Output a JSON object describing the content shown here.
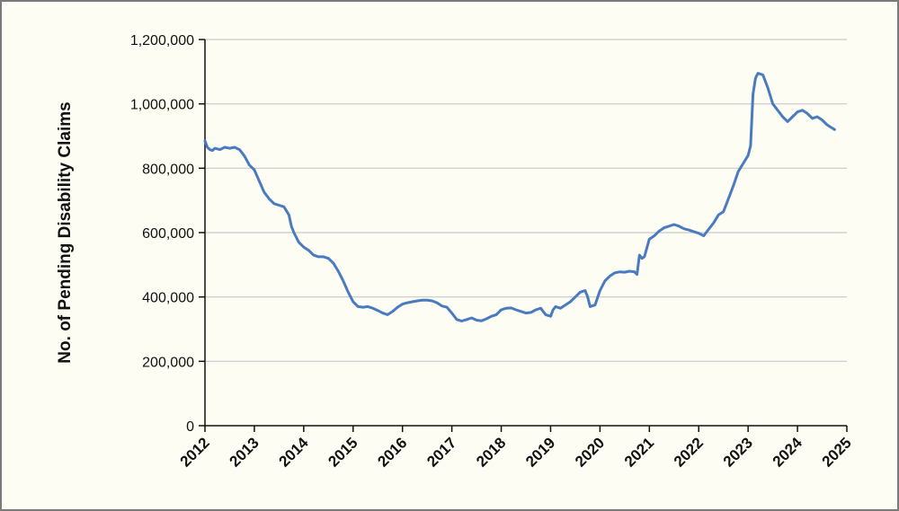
{
  "chart_data": {
    "type": "line",
    "title": "",
    "xlabel": "",
    "ylabel": "No. of Pending Disability Claims",
    "xlim": [
      2012,
      2025
    ],
    "ylim": [
      0,
      1200000
    ],
    "x_ticks": [
      "2012",
      "2013",
      "2014",
      "2015",
      "2016",
      "2017",
      "2018",
      "2019",
      "2020",
      "2021",
      "2022",
      "2023",
      "2024",
      "2025"
    ],
    "y_ticks": [
      {
        "value": 0,
        "label": "0"
      },
      {
        "value": 200000,
        "label": "200,000"
      },
      {
        "value": 400000,
        "label": "400,000"
      },
      {
        "value": 600000,
        "label": "600,000"
      },
      {
        "value": 800000,
        "label": "800,000"
      },
      {
        "value": 1000000,
        "label": "1,000,000"
      },
      {
        "value": 1200000,
        "label": "1,200,000"
      }
    ],
    "grid": "horizontal",
    "legend": "none",
    "line_color": "#4a7bbf",
    "series": [
      {
        "x": [
          2012.0,
          2012.05,
          2012.1,
          2012.15,
          2012.2,
          2012.3,
          2012.4,
          2012.5,
          2012.6,
          2012.7,
          2012.8,
          2012.9,
          2013.0,
          2013.1,
          2013.2,
          2013.3,
          2013.4,
          2013.5,
          2013.6,
          2013.7,
          2013.75,
          2013.8,
          2013.9,
          2014.0,
          2014.1,
          2014.2,
          2014.3,
          2014.4,
          2014.5,
          2014.6,
          2014.7,
          2014.8,
          2014.9,
          2015.0,
          2015.1,
          2015.2,
          2015.3,
          2015.4,
          2015.5,
          2015.6,
          2015.7,
          2015.8,
          2015.9,
          2016.0,
          2016.1,
          2016.2,
          2016.3,
          2016.4,
          2016.5,
          2016.6,
          2016.7,
          2016.8,
          2016.9,
          2017.0,
          2017.1,
          2017.2,
          2017.3,
          2017.4,
          2017.5,
          2017.6,
          2017.7,
          2017.8,
          2017.9,
          2018.0,
          2018.1,
          2018.2,
          2018.3,
          2018.4,
          2018.5,
          2018.6,
          2018.7,
          2018.8,
          2018.85,
          2018.9,
          2019.0,
          2019.05,
          2019.1,
          2019.2,
          2019.3,
          2019.4,
          2019.5,
          2019.6,
          2019.7,
          2019.75,
          2019.8,
          2019.9,
          2020.0,
          2020.1,
          2020.2,
          2020.3,
          2020.4,
          2020.5,
          2020.6,
          2020.7,
          2020.75,
          2020.8,
          2020.85,
          2020.9,
          2021.0,
          2021.1,
          2021.2,
          2021.3,
          2021.4,
          2021.5,
          2021.6,
          2021.7,
          2021.8,
          2021.9,
          2022.0,
          2022.1,
          2022.2,
          2022.3,
          2022.4,
          2022.5,
          2022.6,
          2022.7,
          2022.8,
          2022.9,
          2023.0,
          2023.05,
          2023.1,
          2023.15,
          2023.2,
          2023.3,
          2023.4,
          2023.5,
          2023.6,
          2023.7,
          2023.8,
          2023.9,
          2024.0,
          2024.1,
          2024.2,
          2024.3,
          2024.4,
          2024.5,
          2024.6,
          2024.7,
          2024.75
        ],
        "values": [
          885000,
          865000,
          858000,
          855000,
          862000,
          858000,
          865000,
          862000,
          865000,
          858000,
          838000,
          810000,
          795000,
          760000,
          725000,
          705000,
          690000,
          685000,
          680000,
          655000,
          620000,
          600000,
          570000,
          555000,
          545000,
          530000,
          525000,
          525000,
          520000,
          505000,
          480000,
          450000,
          415000,
          385000,
          370000,
          368000,
          370000,
          365000,
          358000,
          350000,
          345000,
          355000,
          368000,
          378000,
          382000,
          385000,
          388000,
          390000,
          390000,
          388000,
          382000,
          372000,
          368000,
          350000,
          330000,
          325000,
          330000,
          335000,
          328000,
          326000,
          332000,
          340000,
          345000,
          360000,
          365000,
          366000,
          360000,
          355000,
          350000,
          352000,
          360000,
          365000,
          355000,
          345000,
          340000,
          360000,
          370000,
          365000,
          375000,
          385000,
          400000,
          415000,
          420000,
          400000,
          370000,
          375000,
          420000,
          450000,
          465000,
          475000,
          478000,
          477000,
          480000,
          478000,
          470000,
          530000,
          520000,
          525000,
          580000,
          590000,
          605000,
          615000,
          620000,
          625000,
          620000,
          612000,
          608000,
          603000,
          598000,
          590000,
          610000,
          630000,
          655000,
          665000,
          705000,
          745000,
          790000,
          815000,
          840000,
          870000,
          1030000,
          1080000,
          1095000,
          1090000,
          1050000,
          1000000,
          980000,
          960000,
          945000,
          960000,
          975000,
          980000,
          970000,
          955000,
          960000,
          950000,
          935000,
          925000,
          920000
        ]
      }
    ]
  }
}
